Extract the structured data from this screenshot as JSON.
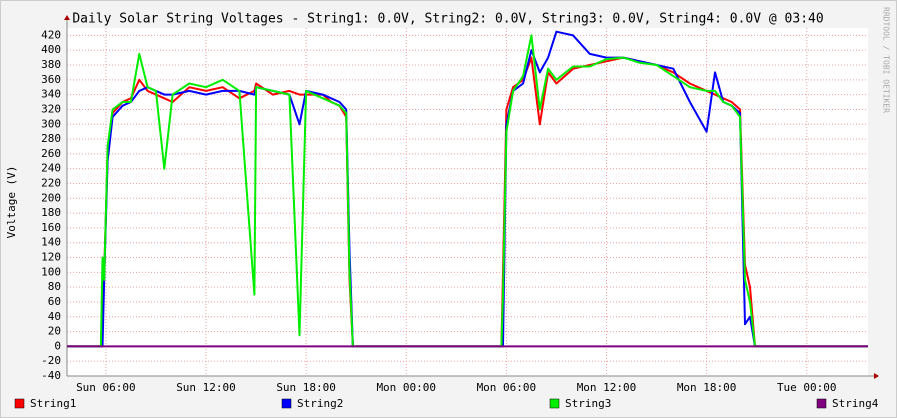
{
  "chart_data": {
    "type": "line",
    "title": "Daily Solar String Voltages - String1: 0.0V, String2: 0.0V, String3: 0.0V, String4: 0.0V @ 03:40",
    "y_label": "Voltage (V)",
    "watermark": "RRDTOOL / TOBI OETIKER",
    "x": [
      3.67,
      5.7,
      5.8,
      5.9,
      6.1,
      6.4,
      7,
      7.5,
      8,
      8.5,
      9,
      9.5,
      10,
      11,
      12,
      13,
      14,
      14.9,
      15,
      16,
      17,
      17.6,
      18,
      19,
      19.5,
      20,
      20.4,
      20.6,
      20.8,
      21,
      25,
      29.7,
      29.8,
      30,
      30.4,
      31,
      31.5,
      32,
      32.5,
      33,
      34,
      35,
      36,
      37,
      38,
      39,
      40,
      41,
      42,
      42.5,
      43,
      43.5,
      44,
      44.3,
      44.6,
      44.9,
      45.1,
      51.67
    ],
    "series": [
      {
        "name": "String1",
        "color": "#ff0000",
        "values": [
          0,
          0,
          60,
          100,
          260,
          315,
          330,
          335,
          360,
          345,
          340,
          335,
          330,
          350,
          345,
          350,
          335,
          345,
          355,
          340,
          345,
          340,
          340,
          340,
          330,
          325,
          310,
          90,
          0,
          0,
          0,
          0,
          100,
          320,
          350,
          360,
          390,
          300,
          370,
          355,
          375,
          380,
          385,
          390,
          385,
          380,
          370,
          355,
          345,
          340,
          335,
          330,
          320,
          110,
          80,
          0,
          0,
          0
        ]
      },
      {
        "name": "String2",
        "color": "#0000ff",
        "values": [
          0,
          0,
          0,
          90,
          250,
          310,
          325,
          330,
          345,
          350,
          345,
          340,
          340,
          345,
          340,
          345,
          345,
          340,
          350,
          345,
          340,
          300,
          345,
          340,
          335,
          330,
          320,
          130,
          0,
          0,
          0,
          0,
          0,
          300,
          345,
          355,
          400,
          370,
          390,
          425,
          420,
          395,
          390,
          390,
          385,
          380,
          375,
          330,
          290,
          370,
          330,
          325,
          315,
          30,
          40,
          0,
          0,
          0
        ]
      },
      {
        "name": "String3",
        "color": "#00ee00",
        "values": [
          0,
          0,
          120,
          90,
          270,
          320,
          330,
          330,
          395,
          350,
          345,
          240,
          340,
          355,
          350,
          360,
          345,
          70,
          350,
          345,
          340,
          15,
          345,
          335,
          330,
          325,
          315,
          100,
          0,
          0,
          0,
          0,
          70,
          290,
          345,
          365,
          420,
          320,
          375,
          360,
          378,
          378,
          388,
          390,
          383,
          380,
          365,
          350,
          345,
          345,
          330,
          325,
          310,
          90,
          60,
          0,
          0,
          0
        ]
      },
      {
        "name": "String4",
        "color": "#800080",
        "values": [
          0,
          0,
          0,
          0,
          0,
          0,
          0,
          0,
          0,
          0,
          0,
          0,
          0,
          0,
          0,
          0,
          0,
          0,
          0,
          0,
          0,
          0,
          0,
          0,
          0,
          0,
          0,
          0,
          0,
          0,
          0,
          0,
          0,
          0,
          0,
          0,
          0,
          0,
          0,
          0,
          0,
          0,
          0,
          0,
          0,
          0,
          0,
          0,
          0,
          0,
          0,
          0,
          0,
          0,
          0,
          0,
          0,
          0
        ]
      }
    ],
    "xlim": [
      3.67,
      51.67
    ],
    "xticks": [
      {
        "value": 6,
        "label": "Sun 06:00"
      },
      {
        "value": 12,
        "label": "Sun 12:00"
      },
      {
        "value": 18,
        "label": "Sun 18:00"
      },
      {
        "value": 24,
        "label": "Mon 00:00"
      },
      {
        "value": 30,
        "label": "Mon 06:00"
      },
      {
        "value": 36,
        "label": "Mon 12:00"
      },
      {
        "value": 42,
        "label": "Mon 18:00"
      },
      {
        "value": 48,
        "label": "Tue 00:00"
      }
    ],
    "ylim": [
      -40,
      430
    ],
    "yticks": [
      -40,
      -20,
      0,
      20,
      40,
      60,
      80,
      100,
      120,
      140,
      160,
      180,
      200,
      220,
      240,
      260,
      280,
      300,
      320,
      340,
      360,
      380,
      400,
      420
    ],
    "grid": true
  }
}
